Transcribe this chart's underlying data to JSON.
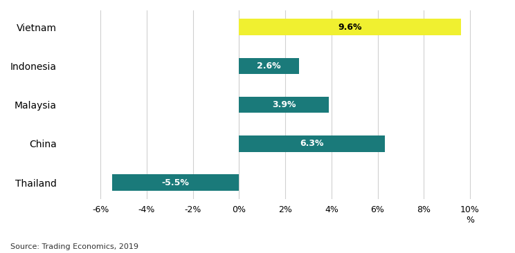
{
  "categories": [
    "Thailand",
    "China",
    "Malaysia",
    "Indonesia",
    "Vietnam"
  ],
  "values": [
    -5.5,
    6.3,
    3.9,
    2.6,
    9.6
  ],
  "bar_colors": [
    "#1a7a7a",
    "#1a7a7a",
    "#1a7a7a",
    "#1a7a7a",
    "#f0f030"
  ],
  "label_colors": [
    "white",
    "white",
    "white",
    "white",
    "black"
  ],
  "labels": [
    "-5.5%",
    "6.3%",
    "3.9%",
    "2.6%",
    "9.6%"
  ],
  "xlim": [
    -7.5,
    11.5
  ],
  "xticks": [
    -6,
    -4,
    -2,
    0,
    2,
    4,
    6,
    8,
    10
  ],
  "xtick_labels": [
    "-6%",
    "-4%",
    "-2%",
    "0%",
    "2%",
    "4%",
    "6%",
    "8%",
    "10%\n%"
  ],
  "source_text": "Source: Trading Economics, 2019",
  "background_color": "#ffffff",
  "bar_height": 0.42,
  "label_fontsize": 9,
  "ytick_fontsize": 10,
  "xtick_fontsize": 9
}
